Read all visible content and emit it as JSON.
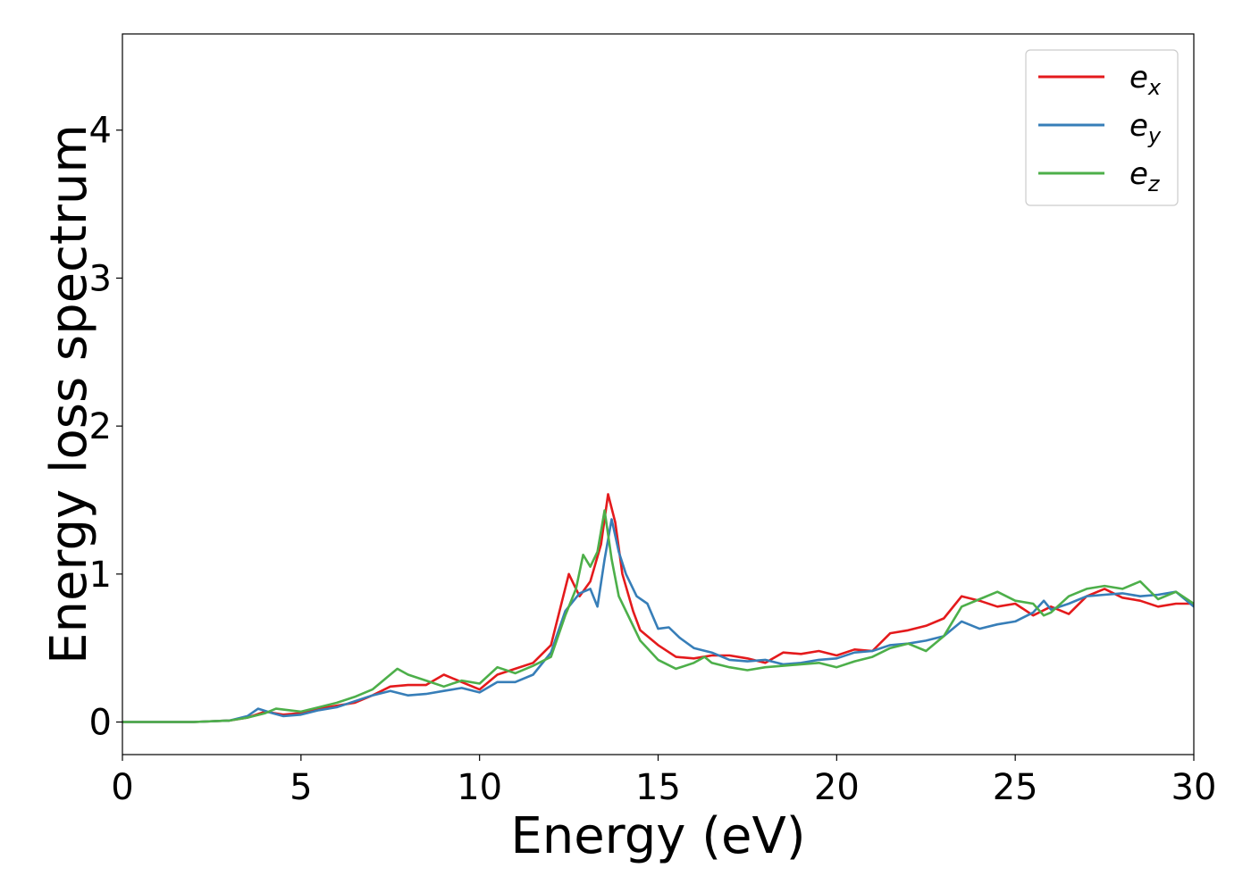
{
  "chart_data": {
    "type": "line",
    "title": "",
    "xlabel": "Energy (eV)",
    "ylabel": "Energy loss spectrum",
    "xlim": [
      0,
      30
    ],
    "ylim": [
      -0.22,
      4.65
    ],
    "xticks": [
      0,
      5,
      10,
      15,
      20,
      25,
      30
    ],
    "yticks": [
      0,
      1,
      2,
      3,
      4
    ],
    "grid": false,
    "legend_position": "top-right",
    "series": [
      {
        "name": "e",
        "subscript": "x",
        "color": "#e41a1c",
        "points": [
          [
            0,
            0
          ],
          [
            2,
            0
          ],
          [
            3,
            0.01
          ],
          [
            3.5,
            0.03
          ],
          [
            4,
            0.07
          ],
          [
            4.5,
            0.05
          ],
          [
            5,
            0.06
          ],
          [
            5.5,
            0.09
          ],
          [
            6,
            0.11
          ],
          [
            6.5,
            0.13
          ],
          [
            7,
            0.18
          ],
          [
            7.5,
            0.24
          ],
          [
            8,
            0.25
          ],
          [
            8.5,
            0.25
          ],
          [
            9,
            0.32
          ],
          [
            9.5,
            0.27
          ],
          [
            10,
            0.22
          ],
          [
            10.5,
            0.32
          ],
          [
            11,
            0.36
          ],
          [
            11.5,
            0.4
          ],
          [
            12,
            0.52
          ],
          [
            12.5,
            1.0
          ],
          [
            12.8,
            0.85
          ],
          [
            13.1,
            0.95
          ],
          [
            13.4,
            1.2
          ],
          [
            13.6,
            1.54
          ],
          [
            13.8,
            1.35
          ],
          [
            14.0,
            1.0
          ],
          [
            14.3,
            0.75
          ],
          [
            14.5,
            0.62
          ],
          [
            15,
            0.52
          ],
          [
            15.5,
            0.44
          ],
          [
            16,
            0.43
          ],
          [
            16.5,
            0.45
          ],
          [
            17,
            0.45
          ],
          [
            17.5,
            0.43
          ],
          [
            18,
            0.4
          ],
          [
            18.5,
            0.47
          ],
          [
            19,
            0.46
          ],
          [
            19.5,
            0.48
          ],
          [
            20,
            0.45
          ],
          [
            20.5,
            0.49
          ],
          [
            21,
            0.48
          ],
          [
            21.5,
            0.6
          ],
          [
            22,
            0.62
          ],
          [
            22.5,
            0.65
          ],
          [
            23,
            0.7
          ],
          [
            23.5,
            0.85
          ],
          [
            24,
            0.82
          ],
          [
            24.5,
            0.78
          ],
          [
            25,
            0.8
          ],
          [
            25.5,
            0.72
          ],
          [
            26,
            0.78
          ],
          [
            26.5,
            0.73
          ],
          [
            27,
            0.85
          ],
          [
            27.5,
            0.9
          ],
          [
            28,
            0.84
          ],
          [
            28.5,
            0.82
          ],
          [
            29,
            0.78
          ],
          [
            29.5,
            0.8
          ],
          [
            30,
            0.8
          ]
        ]
      },
      {
        "name": "e",
        "subscript": "y",
        "color": "#377eb8",
        "points": [
          [
            0,
            0
          ],
          [
            2,
            0
          ],
          [
            3,
            0.01
          ],
          [
            3.5,
            0.04
          ],
          [
            3.8,
            0.09
          ],
          [
            4.2,
            0.06
          ],
          [
            4.5,
            0.04
          ],
          [
            5,
            0.05
          ],
          [
            5.5,
            0.08
          ],
          [
            6,
            0.1
          ],
          [
            6.5,
            0.14
          ],
          [
            7,
            0.18
          ],
          [
            7.5,
            0.21
          ],
          [
            8,
            0.18
          ],
          [
            8.5,
            0.19
          ],
          [
            9,
            0.21
          ],
          [
            9.5,
            0.23
          ],
          [
            10,
            0.2
          ],
          [
            10.5,
            0.27
          ],
          [
            11,
            0.27
          ],
          [
            11.5,
            0.32
          ],
          [
            12,
            0.47
          ],
          [
            12.4,
            0.75
          ],
          [
            12.8,
            0.87
          ],
          [
            13.1,
            0.9
          ],
          [
            13.3,
            0.78
          ],
          [
            13.5,
            1.1
          ],
          [
            13.7,
            1.37
          ],
          [
            13.9,
            1.15
          ],
          [
            14.1,
            1.0
          ],
          [
            14.4,
            0.85
          ],
          [
            14.7,
            0.8
          ],
          [
            15,
            0.63
          ],
          [
            15.3,
            0.64
          ],
          [
            15.6,
            0.57
          ],
          [
            16,
            0.5
          ],
          [
            16.5,
            0.47
          ],
          [
            17,
            0.42
          ],
          [
            17.5,
            0.41
          ],
          [
            18,
            0.42
          ],
          [
            18.5,
            0.39
          ],
          [
            19,
            0.4
          ],
          [
            19.5,
            0.42
          ],
          [
            20,
            0.43
          ],
          [
            20.5,
            0.47
          ],
          [
            21,
            0.48
          ],
          [
            21.5,
            0.52
          ],
          [
            22,
            0.53
          ],
          [
            22.5,
            0.55
          ],
          [
            23,
            0.58
          ],
          [
            23.5,
            0.68
          ],
          [
            24,
            0.63
          ],
          [
            24.5,
            0.66
          ],
          [
            25,
            0.68
          ],
          [
            25.5,
            0.74
          ],
          [
            25.8,
            0.82
          ],
          [
            26,
            0.76
          ],
          [
            26.5,
            0.8
          ],
          [
            27,
            0.85
          ],
          [
            27.5,
            0.86
          ],
          [
            28,
            0.87
          ],
          [
            28.5,
            0.85
          ],
          [
            29,
            0.86
          ],
          [
            29.5,
            0.88
          ],
          [
            30,
            0.78
          ]
        ]
      },
      {
        "name": "e",
        "subscript": "z",
        "color": "#4daf4a",
        "points": [
          [
            0,
            0
          ],
          [
            2,
            0
          ],
          [
            3,
            0.01
          ],
          [
            3.5,
            0.03
          ],
          [
            4,
            0.06
          ],
          [
            4.3,
            0.09
          ],
          [
            5,
            0.07
          ],
          [
            5.5,
            0.1
          ],
          [
            6,
            0.13
          ],
          [
            6.5,
            0.17
          ],
          [
            7,
            0.22
          ],
          [
            7.4,
            0.3
          ],
          [
            7.7,
            0.36
          ],
          [
            8,
            0.32
          ],
          [
            8.5,
            0.28
          ],
          [
            9,
            0.24
          ],
          [
            9.5,
            0.28
          ],
          [
            10,
            0.26
          ],
          [
            10.5,
            0.37
          ],
          [
            11,
            0.33
          ],
          [
            11.5,
            0.38
          ],
          [
            12,
            0.44
          ],
          [
            12.4,
            0.72
          ],
          [
            12.7,
            0.9
          ],
          [
            12.9,
            1.13
          ],
          [
            13.1,
            1.05
          ],
          [
            13.3,
            1.15
          ],
          [
            13.5,
            1.43
          ],
          [
            13.7,
            1.1
          ],
          [
            13.9,
            0.85
          ],
          [
            14.2,
            0.7
          ],
          [
            14.5,
            0.55
          ],
          [
            15,
            0.42
          ],
          [
            15.5,
            0.36
          ],
          [
            16,
            0.4
          ],
          [
            16.3,
            0.44
          ],
          [
            16.5,
            0.4
          ],
          [
            17,
            0.37
          ],
          [
            17.5,
            0.35
          ],
          [
            18,
            0.37
          ],
          [
            18.5,
            0.38
          ],
          [
            19,
            0.39
          ],
          [
            19.5,
            0.4
          ],
          [
            20,
            0.37
          ],
          [
            20.5,
            0.41
          ],
          [
            21,
            0.44
          ],
          [
            21.5,
            0.5
          ],
          [
            22,
            0.53
          ],
          [
            22.5,
            0.48
          ],
          [
            23,
            0.58
          ],
          [
            23.5,
            0.78
          ],
          [
            24,
            0.83
          ],
          [
            24.5,
            0.88
          ],
          [
            25,
            0.82
          ],
          [
            25.5,
            0.8
          ],
          [
            25.8,
            0.72
          ],
          [
            26,
            0.74
          ],
          [
            26.5,
            0.85
          ],
          [
            27,
            0.9
          ],
          [
            27.5,
            0.92
          ],
          [
            28,
            0.9
          ],
          [
            28.5,
            0.95
          ],
          [
            29,
            0.83
          ],
          [
            29.5,
            0.88
          ],
          [
            30,
            0.8
          ]
        ]
      }
    ]
  }
}
